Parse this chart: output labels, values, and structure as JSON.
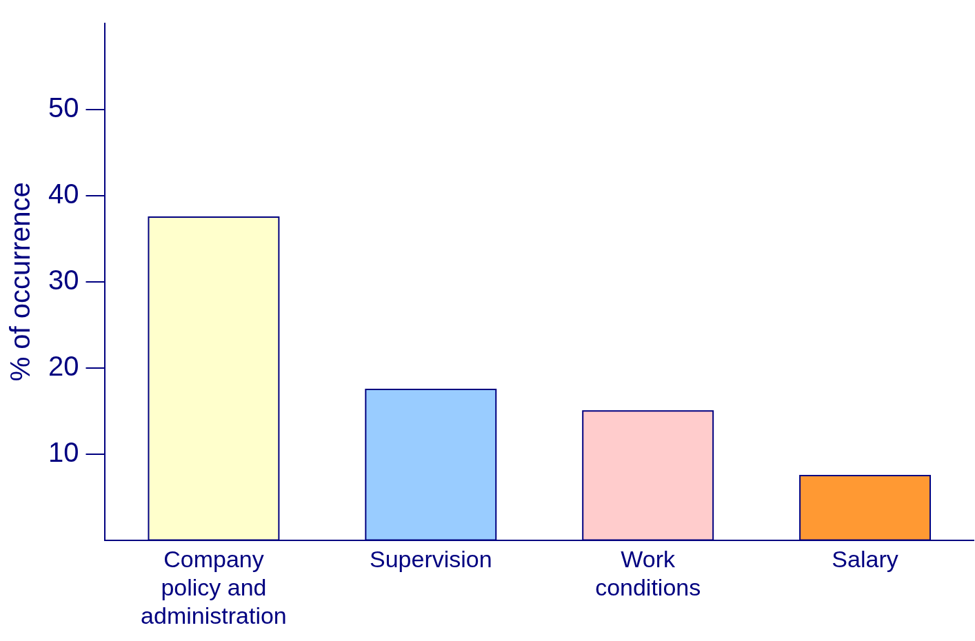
{
  "chart_data": {
    "type": "bar",
    "ylabel": "% of occurrence",
    "categories": [
      "Company policy and administration",
      "Supervision",
      "Work conditions",
      "Salary"
    ],
    "values": [
      37.5,
      17.5,
      15,
      7.5
    ],
    "colors": [
      "#ffffcc",
      "#99ccff",
      "#ffcccc",
      "#ff9933"
    ],
    "ylim": [
      0,
      60
    ],
    "yticks": [
      10,
      20,
      30,
      40,
      50
    ],
    "grid": false,
    "legend": false
  }
}
